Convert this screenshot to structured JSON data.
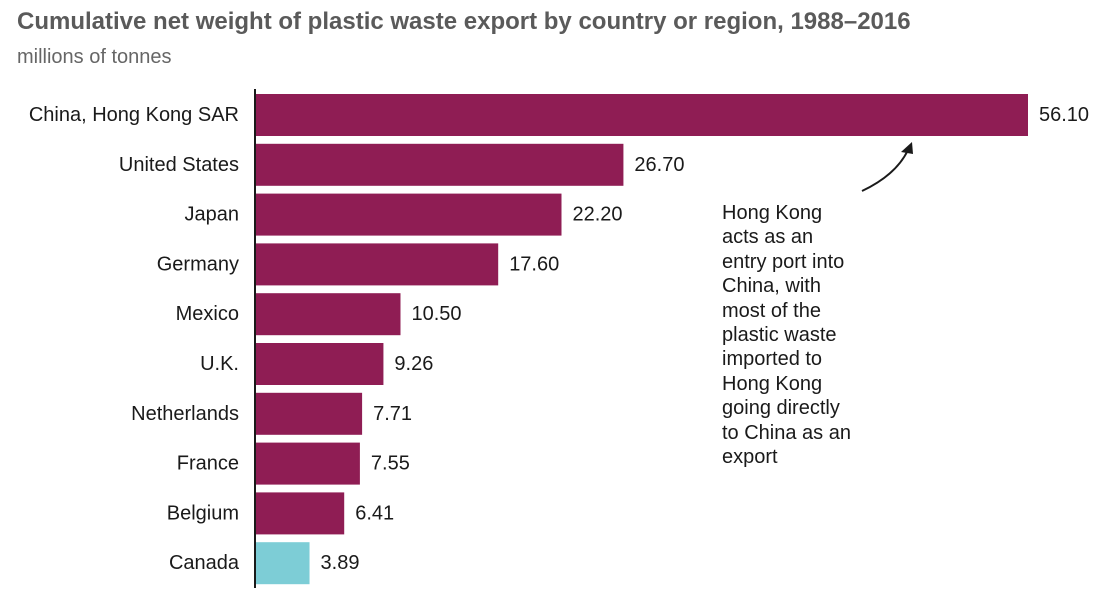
{
  "chart_data": {
    "type": "bar",
    "orientation": "horizontal",
    "title": "Cumulative net weight of plastic waste export by country or region, 1988–2016",
    "subtitle": "millions of tonnes",
    "categories": [
      "China, Hong Kong SAR",
      "United States",
      "Japan",
      "Germany",
      "Mexico",
      "U.K.",
      "Netherlands",
      "France",
      "Belgium",
      "Canada"
    ],
    "values": [
      56.1,
      26.7,
      22.2,
      17.6,
      10.5,
      9.26,
      7.71,
      7.55,
      6.41,
      3.89
    ],
    "value_labels": [
      "56.10",
      "26.70",
      "22.20",
      "17.60",
      "10.50",
      "9.26",
      "7.71",
      "7.55",
      "6.41",
      "3.89"
    ],
    "bar_colors": [
      "#8f1d54",
      "#8f1d54",
      "#8f1d54",
      "#8f1d54",
      "#8f1d54",
      "#8f1d54",
      "#8f1d54",
      "#8f1d54",
      "#8f1d54",
      "#7dcdd6"
    ],
    "xlim": [
      0,
      56.1
    ],
    "grid": false,
    "annotation": {
      "lines": [
        "Hong Kong",
        "acts as an",
        "entry port into",
        "China, with",
        "most of the",
        "plastic waste",
        "imported to",
        "Hong Kong",
        "going directly",
        "to China as an",
        "export"
      ],
      "target": "China, Hong Kong SAR",
      "arrow": true
    }
  },
  "colors": {
    "bar": "#8f1d54",
    "highlight": "#7dcdd6",
    "title": "#5a5a5a",
    "text": "#1a1a1a"
  }
}
